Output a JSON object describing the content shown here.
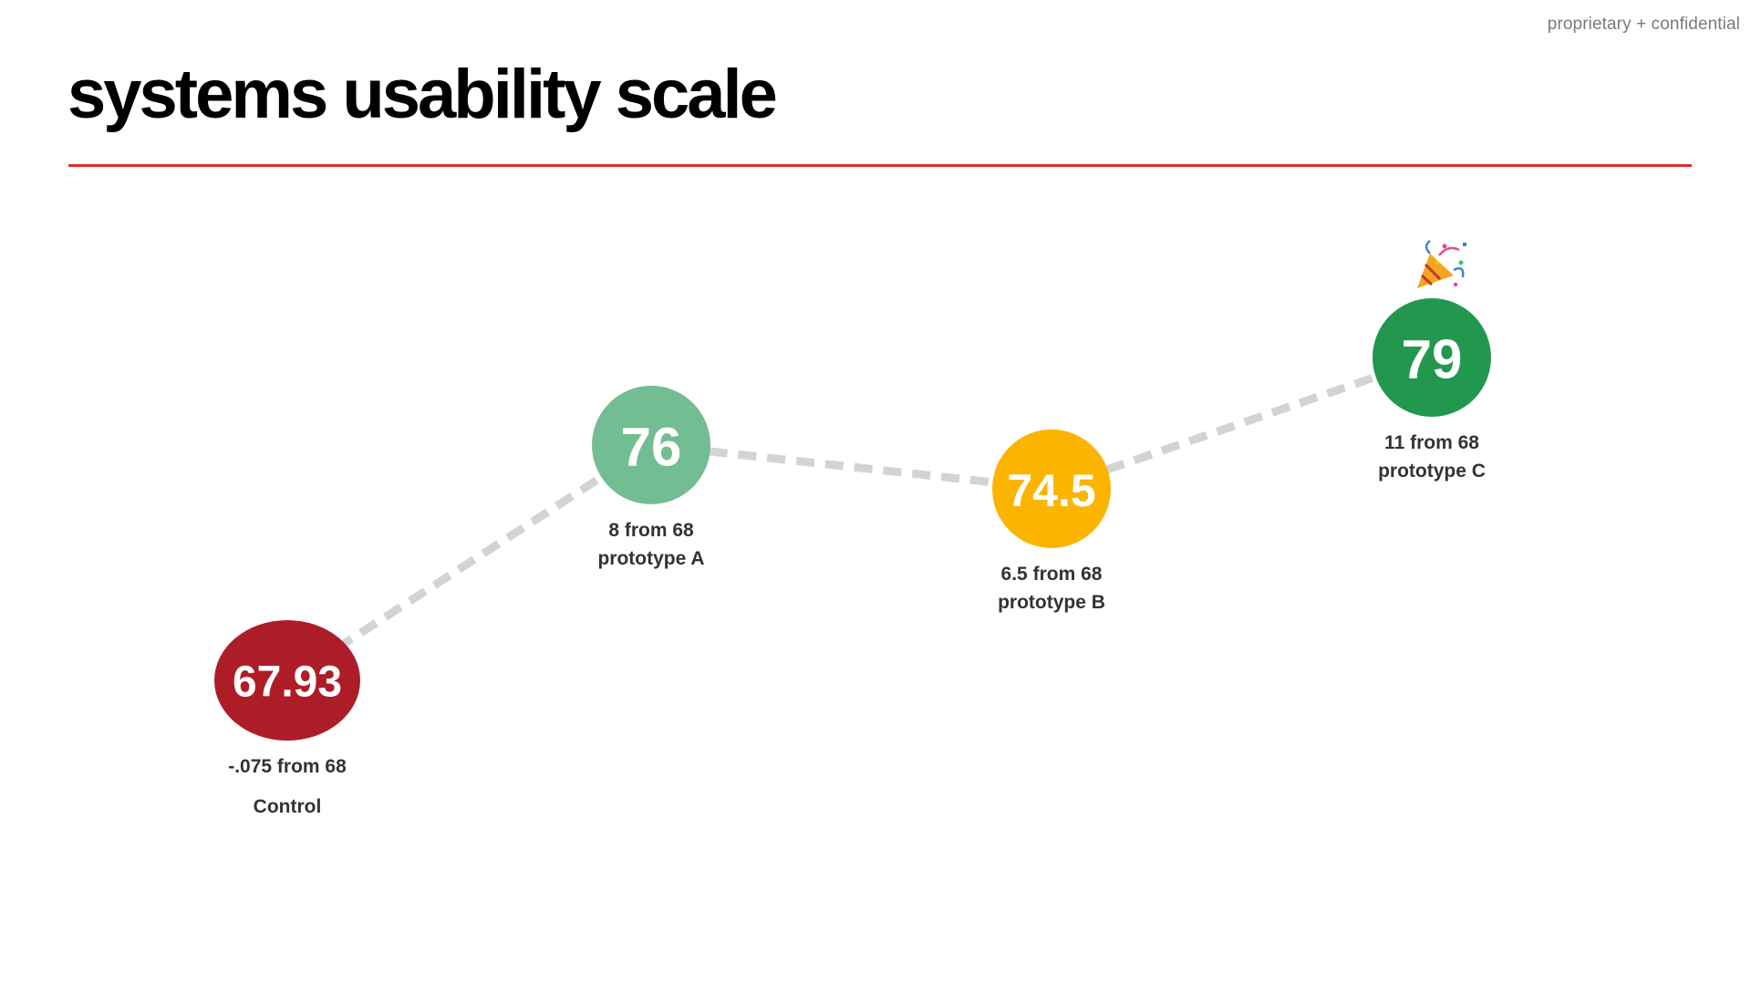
{
  "slide": {
    "title": "systems usability scale",
    "confidential": "proprietary + confidential",
    "accent_color": "#e02b2b"
  },
  "chart_data": {
    "type": "line",
    "title": "systems usability scale",
    "categories": [
      "Control",
      "prototype A",
      "prototype B",
      "prototype C"
    ],
    "series": [
      {
        "values": [
          67.93,
          76,
          74.5,
          79
        ],
        "value_labels": [
          "67.93",
          "76",
          "74.5",
          "79"
        ],
        "delta_labels": [
          "-.075 from 68",
          "8 from 68",
          "6.5 from 68",
          "11 from 68"
        ],
        "point_colors": [
          "#ad1d28",
          "#73bd92",
          "#fbb500",
          "#22984f"
        ],
        "line_color": "#d3d3d3",
        "line_style": "dashed"
      }
    ],
    "benchmark": 68,
    "highlight": {
      "category": "prototype C",
      "icon": "party-popper-icon"
    },
    "grid": false,
    "axes_visible": false,
    "legend": "none"
  }
}
